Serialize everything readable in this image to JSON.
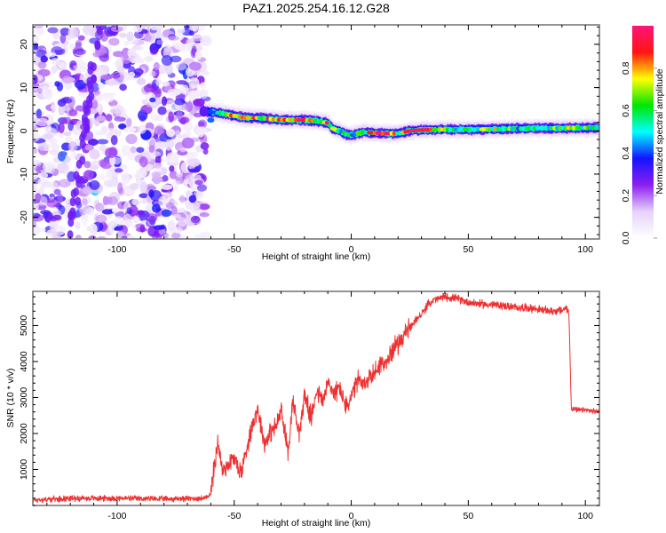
{
  "chart_data": [
    {
      "type": "heatmap",
      "title": "PAZ1.2025.254.16.12.G28",
      "xlabel": "Height of straight line (km)",
      "ylabel": "Frequency (Hz)",
      "xlim": [
        -136,
        106
      ],
      "ylim": [
        -25,
        24.5
      ],
      "xticks": [
        -100,
        -50,
        0,
        50,
        100
      ],
      "xtick_labels": [
        "-100",
        "-50",
        "0",
        "50",
        "100"
      ],
      "yticks": [
        -20,
        -10,
        0,
        10,
        20
      ],
      "ytick_labels": [
        "-20",
        "-10",
        "0",
        "10",
        "20"
      ],
      "colorbar": {
        "label": "Normalized spectral amplitude",
        "range": [
          0,
          1
        ],
        "ticks": [
          0.0,
          0.2,
          0.4,
          0.6,
          0.8
        ],
        "tick_labels": [
          "0.0",
          "0.2",
          "0.4",
          "0.6",
          "0.8"
        ],
        "colormap": [
          "#ffffff",
          "#e6d2fa",
          "#8c1ef0",
          "#1414ff",
          "#00ffff",
          "#00e600",
          "#ffff00",
          "#ff1414",
          "#ff1478"
        ]
      },
      "noise_region": {
        "x_range": [
          -136,
          -62
        ],
        "freq_range": [
          -25,
          24.5
        ],
        "typical_amplitude": [
          0.0,
          0.15
        ]
      },
      "signal_ridge": {
        "x": [
          -62,
          -58,
          -55,
          -50,
          -45,
          -40,
          -35,
          -30,
          -25,
          -20,
          -15,
          -10,
          -8,
          -5,
          -2,
          0,
          5,
          10,
          15,
          20,
          25,
          30,
          40,
          50,
          60,
          70,
          80,
          90,
          100,
          106
        ],
        "freq": [
          4.5,
          4.2,
          4.0,
          3.5,
          3.0,
          3.0,
          2.8,
          2.5,
          2.5,
          2.5,
          2.3,
          1.8,
          0.5,
          0.0,
          -0.8,
          -1.0,
          -0.3,
          -0.5,
          -0.6,
          -0.6,
          0.0,
          0.2,
          0.3,
          0.3,
          0.4,
          0.5,
          0.6,
          0.6,
          0.7,
          0.7
        ],
        "amplitude": [
          0.3,
          0.55,
          0.65,
          0.75,
          0.85,
          0.7,
          0.85,
          0.9,
          0.85,
          0.9,
          0.55,
          0.85,
          0.6,
          0.55,
          0.45,
          0.5,
          0.6,
          0.95,
          0.95,
          0.6,
          0.95,
          0.95,
          0.6,
          0.5,
          0.65,
          0.55,
          0.55,
          0.6,
          0.6,
          0.6
        ]
      }
    },
    {
      "type": "line",
      "title": "",
      "xlabel": "Height of straight line (km)",
      "ylabel": "SNR (10 * v/v)",
      "xlim": [
        -136,
        106
      ],
      "ylim": [
        0,
        5950
      ],
      "xticks": [
        -100,
        -50,
        0,
        50,
        100
      ],
      "xtick_labels": [
        "-100",
        "-50",
        "0",
        "50",
        "100"
      ],
      "yticks": [
        1000,
        2000,
        3000,
        4000,
        5000
      ],
      "ytick_labels": [
        "1000",
        "2000",
        "3000",
        "4000",
        "5000"
      ],
      "series": [
        {
          "name": "SNR",
          "color": "#f03030",
          "x": [
            -136,
            -120,
            -100,
            -80,
            -62,
            -60,
            -58,
            -57,
            -55,
            -52,
            -50,
            -47,
            -45,
            -42,
            -40,
            -37,
            -35,
            -32,
            -30,
            -27,
            -25,
            -22,
            -20,
            -17,
            -15,
            -12,
            -10,
            -7,
            -5,
            -2,
            0,
            3,
            5,
            8,
            10,
            13,
            15,
            18,
            20,
            23,
            25,
            28,
            30,
            33,
            35,
            40,
            45,
            50,
            55,
            60,
            65,
            70,
            75,
            80,
            85,
            90,
            92,
            93,
            94,
            96,
            100,
            106
          ],
          "y": [
            150,
            200,
            200,
            180,
            200,
            350,
            1300,
            1800,
            950,
            1200,
            1300,
            900,
            1500,
            2300,
            2700,
            1700,
            2000,
            2200,
            2650,
            1500,
            2900,
            2000,
            3100,
            2400,
            3200,
            2900,
            3400,
            3100,
            3300,
            2700,
            3000,
            3500,
            3300,
            3600,
            3700,
            4000,
            3900,
            4400,
            4500,
            4800,
            4900,
            5200,
            5300,
            5600,
            5700,
            5800,
            5750,
            5650,
            5600,
            5580,
            5550,
            5500,
            5500,
            5450,
            5400,
            5420,
            5500,
            5300,
            2700,
            2650,
            2650,
            2600
          ]
        }
      ]
    }
  ]
}
